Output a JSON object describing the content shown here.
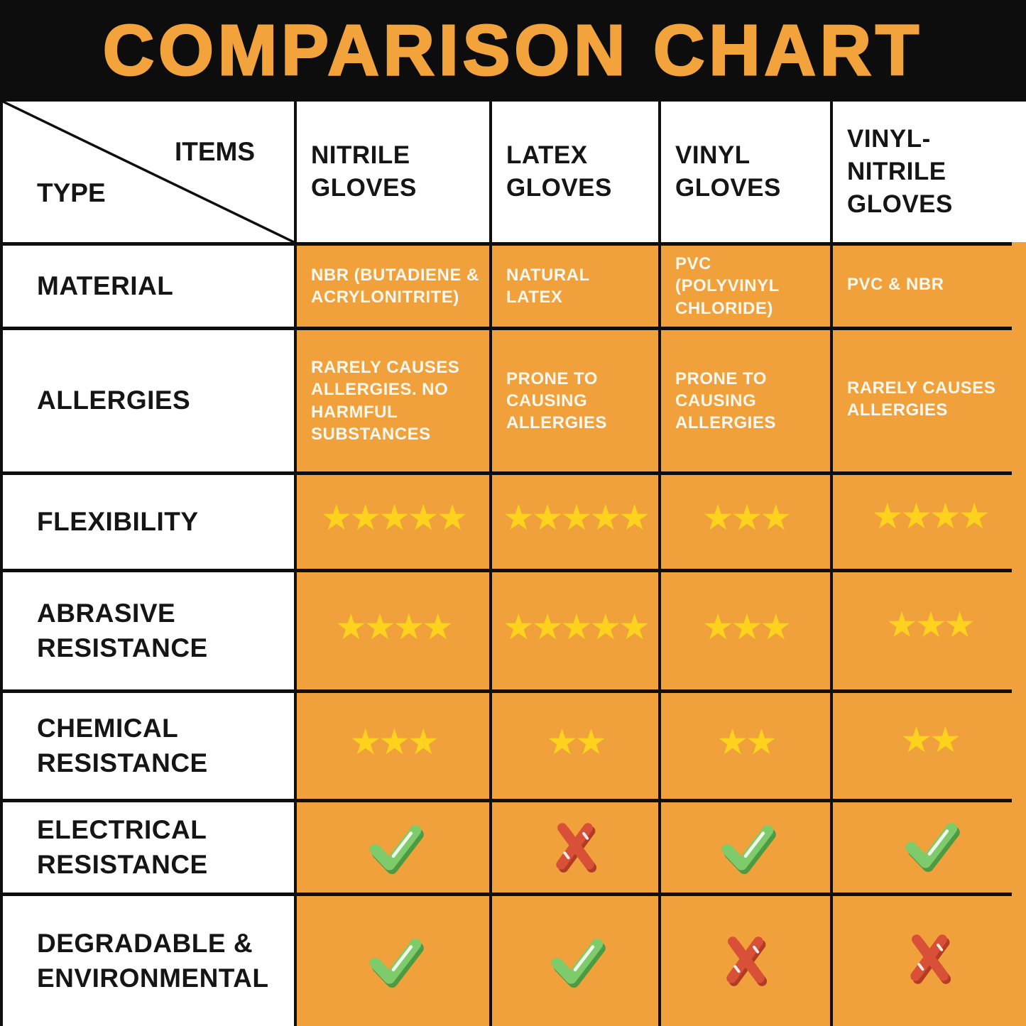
{
  "banner": {
    "title": "COMPARISON CHART"
  },
  "colors": {
    "banner_bg": "#0D0D0D",
    "title_orange": "#F2A33C",
    "cell_orange": "#F0A13B",
    "star_yellow": "#FFD21E",
    "check_green": "#7ECB6C",
    "check_shadow": "#4E9A43",
    "cross_red": "#D95038",
    "cross_shadow": "#B23B24",
    "border_black": "#0E0E0E",
    "white_text": "#FCF8EF"
  },
  "chart_data": {
    "type": "table",
    "title": "COMPARISON CHART",
    "corner": {
      "items_label": "ITEMS",
      "type_label": "TYPE"
    },
    "columns": [
      "NITRILE GLOVES",
      "LATEX GLOVES",
      "VINYL GLOVES",
      "VINYL-NITRILE GLOVES"
    ],
    "rows": [
      {
        "label": "MATERIAL",
        "kind": "text",
        "values": [
          "NBR (BUTADIENE & ACRYLONITRITE)",
          "NATURAL LATEX",
          "PVC (POLYVINYL CHLORIDE)",
          "PVC & NBR"
        ]
      },
      {
        "label": "ALLERGIES",
        "kind": "text",
        "values": [
          "RARELY CAUSES ALLERGIES. NO HARMFUL SUBSTANCES",
          "PRONE TO CAUSING ALLERGIES",
          "PRONE TO CAUSING ALLERGIES",
          "RARELY CAUSES ALLERGIES"
        ]
      },
      {
        "label": "FLEXIBILITY",
        "kind": "stars",
        "values": [
          5,
          5,
          3,
          4
        ]
      },
      {
        "label": "ABRASIVE RESISTANCE",
        "kind": "stars",
        "values": [
          4,
          5,
          3,
          3
        ]
      },
      {
        "label": "CHEMICAL RESISTANCE",
        "kind": "stars",
        "values": [
          3,
          2,
          2,
          2
        ]
      },
      {
        "label": "ELECTRICAL RESISTANCE",
        "kind": "bool",
        "values": [
          true,
          false,
          true,
          true
        ]
      },
      {
        "label": "DEGRADABLE & ENVIRONMENTAL",
        "kind": "bool",
        "values": [
          true,
          true,
          false,
          false
        ]
      }
    ]
  }
}
